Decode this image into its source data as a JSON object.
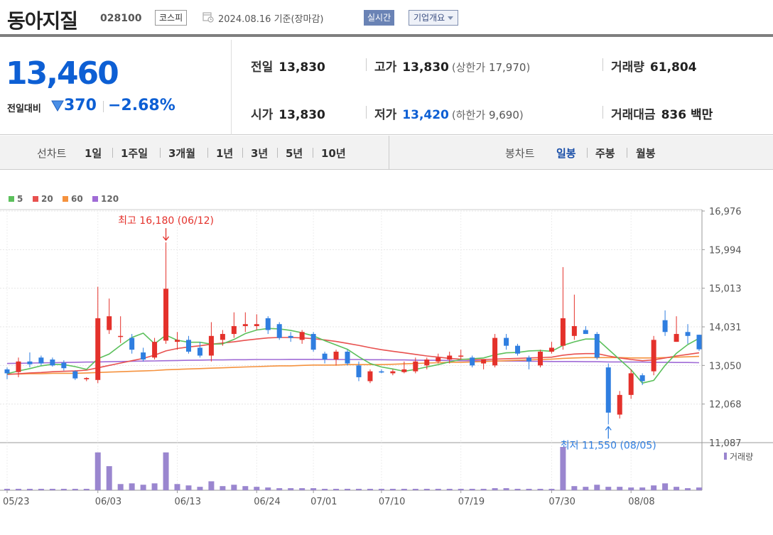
{
  "header": {
    "name": "동아지질",
    "code": "028100",
    "market": "코스피",
    "date": "2024.08.16 기준(장마감)",
    "realtime": "실시간",
    "company": "기업개요"
  },
  "quote": {
    "price": "13,460",
    "change_label": "전일대비",
    "change": "370",
    "change_rate": "−2.68%",
    "prev_close_label": "전일",
    "prev_close": "13,830",
    "high_label": "고가",
    "high": "13,830",
    "upper_limit_label": "상한가",
    "upper_limit": "17,970",
    "volume_label": "거래량",
    "volume": "61,804",
    "open_label": "시가",
    "open": "13,830",
    "low_label": "저가",
    "low": "13,420",
    "lower_limit_label": "하한가",
    "lower_limit": "9,690",
    "amount_label": "거래대금",
    "amount": "836 백만"
  },
  "period_bar": {
    "line_label": "선차트",
    "line_items": [
      "1일",
      "1주일",
      "3개월",
      "1년",
      "3년",
      "5년",
      "10년"
    ],
    "candle_label": "봉차트",
    "candle_items": [
      "일봉",
      "주봉",
      "월봉"
    ],
    "selected_candle": "일봉"
  },
  "colors": {
    "up": "#e4312b",
    "down": "#2f7ee0",
    "ma5": "#5cc05c",
    "ma20": "#e8514f",
    "ma60": "#f5923e",
    "ma120": "#a06bd6",
    "volume": "#9a86cf"
  },
  "chart_data": {
    "type": "candlestick",
    "legend": [
      {
        "label": "5",
        "color": "#5cc05c"
      },
      {
        "label": "20",
        "color": "#e8514f"
      },
      {
        "label": "60",
        "color": "#f5923e"
      },
      {
        "label": "120",
        "color": "#a06bd6"
      }
    ],
    "y_ticks": [
      "16,976",
      "15,994",
      "15,013",
      "14,031",
      "13,050",
      "12,068",
      "11,087"
    ],
    "x_ticks": [
      "05/23",
      "06/03",
      "06/13",
      "06/24",
      "07/01",
      "07/10",
      "07/19",
      "07/30",
      "08/08"
    ],
    "annotations": {
      "high": "최고 16,180 (06/12)",
      "low": "최저 11,550 (08/05)"
    },
    "volume_label": "거래량",
    "candles": [
      {
        "o": 12950,
        "h": 13000,
        "l": 12700,
        "c": 12850
      },
      {
        "o": 12880,
        "h": 13250,
        "l": 12750,
        "c": 13150
      },
      {
        "o": 13150,
        "h": 13380,
        "l": 13000,
        "c": 13080
      },
      {
        "o": 13250,
        "h": 13300,
        "l": 13050,
        "c": 13100
      },
      {
        "o": 13200,
        "h": 13250,
        "l": 13020,
        "c": 13050
      },
      {
        "o": 13120,
        "h": 13180,
        "l": 12920,
        "c": 12980
      },
      {
        "o": 12900,
        "h": 12930,
        "l": 12680,
        "c": 12720
      },
      {
        "o": 12700,
        "h": 12750,
        "l": 12650,
        "c": 12730
      },
      {
        "o": 12680,
        "h": 15050,
        "l": 12600,
        "c": 14250
      },
      {
        "o": 13950,
        "h": 14750,
        "l": 13850,
        "c": 14300
      },
      {
        "o": 13800,
        "h": 14300,
        "l": 13620,
        "c": 13800
      },
      {
        "o": 13750,
        "h": 13850,
        "l": 13350,
        "c": 13450
      },
      {
        "o": 13380,
        "h": 13500,
        "l": 13150,
        "c": 13200
      },
      {
        "o": 13250,
        "h": 13750,
        "l": 13200,
        "c": 13650
      },
      {
        "o": 13680,
        "h": 16180,
        "l": 13600,
        "c": 15000
      },
      {
        "o": 13650,
        "h": 13900,
        "l": 13450,
        "c": 13700
      },
      {
        "o": 13700,
        "h": 13800,
        "l": 13350,
        "c": 13400
      },
      {
        "o": 13500,
        "h": 13650,
        "l": 13250,
        "c": 13300
      },
      {
        "o": 13300,
        "h": 14150,
        "l": 13150,
        "c": 13800
      },
      {
        "o": 13700,
        "h": 13950,
        "l": 13550,
        "c": 13850
      },
      {
        "o": 13850,
        "h": 14400,
        "l": 13750,
        "c": 14050
      },
      {
        "o": 14050,
        "h": 14400,
        "l": 13900,
        "c": 14100
      },
      {
        "o": 14050,
        "h": 14350,
        "l": 13950,
        "c": 14100
      },
      {
        "o": 14250,
        "h": 14300,
        "l": 13850,
        "c": 13950
      },
      {
        "o": 14100,
        "h": 14150,
        "l": 13700,
        "c": 13750
      },
      {
        "o": 13800,
        "h": 13900,
        "l": 13650,
        "c": 13750
      },
      {
        "o": 13700,
        "h": 13950,
        "l": 13600,
        "c": 13900
      },
      {
        "o": 13850,
        "h": 13900,
        "l": 13400,
        "c": 13450
      },
      {
        "o": 13350,
        "h": 13400,
        "l": 13100,
        "c": 13200
      },
      {
        "o": 13200,
        "h": 13450,
        "l": 13050,
        "c": 13400
      },
      {
        "o": 13400,
        "h": 13450,
        "l": 13050,
        "c": 13100
      },
      {
        "o": 13050,
        "h": 13150,
        "l": 12650,
        "c": 12750
      },
      {
        "o": 12650,
        "h": 12950,
        "l": 12600,
        "c": 12900
      },
      {
        "o": 12900,
        "h": 12950,
        "l": 12850,
        "c": 12870
      },
      {
        "o": 12850,
        "h": 12950,
        "l": 12800,
        "c": 12900
      },
      {
        "o": 12880,
        "h": 13150,
        "l": 12850,
        "c": 12950
      },
      {
        "o": 12900,
        "h": 13250,
        "l": 12850,
        "c": 13150
      },
      {
        "o": 13050,
        "h": 13250,
        "l": 12950,
        "c": 13200
      },
      {
        "o": 13150,
        "h": 13350,
        "l": 13100,
        "c": 13250
      },
      {
        "o": 13200,
        "h": 13400,
        "l": 13100,
        "c": 13300
      },
      {
        "o": 13300,
        "h": 13450,
        "l": 13200,
        "c": 13300
      },
      {
        "o": 13250,
        "h": 13300,
        "l": 13000,
        "c": 13050
      },
      {
        "o": 13100,
        "h": 13200,
        "l": 12950,
        "c": 13200
      },
      {
        "o": 13050,
        "h": 13850,
        "l": 13000,
        "c": 13750
      },
      {
        "o": 13750,
        "h": 13850,
        "l": 13450,
        "c": 13550
      },
      {
        "o": 13550,
        "h": 13600,
        "l": 13300,
        "c": 13350
      },
      {
        "o": 13250,
        "h": 13300,
        "l": 12950,
        "c": 13150
      },
      {
        "o": 13050,
        "h": 13450,
        "l": 13000,
        "c": 13400
      },
      {
        "o": 13400,
        "h": 13650,
        "l": 13350,
        "c": 13500
      },
      {
        "o": 13550,
        "h": 15550,
        "l": 13450,
        "c": 14250
      },
      {
        "o": 13800,
        "h": 14850,
        "l": 13700,
        "c": 14050
      },
      {
        "o": 13950,
        "h": 14050,
        "l": 13850,
        "c": 13850
      },
      {
        "o": 13850,
        "h": 13900,
        "l": 13200,
        "c": 13250
      },
      {
        "o": 13000,
        "h": 13100,
        "l": 11550,
        "c": 11850
      },
      {
        "o": 11800,
        "h": 12400,
        "l": 11700,
        "c": 12300
      },
      {
        "o": 12300,
        "h": 12950,
        "l": 12200,
        "c": 12850
      },
      {
        "o": 12800,
        "h": 12850,
        "l": 12550,
        "c": 12650
      },
      {
        "o": 12900,
        "h": 13800,
        "l": 12800,
        "c": 13700
      },
      {
        "o": 14200,
        "h": 14450,
        "l": 13800,
        "c": 13900
      },
      {
        "o": 13650,
        "h": 14300,
        "l": 13650,
        "c": 13850
      },
      {
        "o": 13900,
        "h": 14100,
        "l": 13600,
        "c": 13800
      },
      {
        "o": 13830,
        "h": 13830,
        "l": 13420,
        "c": 13460
      }
    ],
    "volume": [
      2,
      2,
      2,
      0,
      0,
      0,
      0,
      0,
      55,
      35,
      9,
      10,
      8,
      10,
      55,
      9,
      7,
      5,
      13,
      6,
      8,
      6,
      5,
      4,
      3,
      3,
      3,
      3,
      2,
      0,
      0,
      2,
      0,
      0,
      0,
      0,
      0,
      2,
      2,
      2,
      2,
      2,
      2,
      3,
      3,
      2,
      2,
      2,
      2,
      63,
      6,
      5,
      8,
      5,
      5,
      4,
      4,
      7,
      10,
      5,
      3,
      4
    ],
    "ma5": [
      12840,
      12910,
      12970,
      13040,
      13080,
      13070,
      13020,
      12950,
      13220,
      13340,
      13560,
      13760,
      13870,
      13600,
      13820,
      13690,
      13640,
      13640,
      13590,
      13600,
      13710,
      13860,
      13950,
      13990,
      13980,
      13940,
      13880,
      13800,
      13680,
      13570,
      13460,
      13270,
      13100,
      13010,
      12960,
      12900,
      12950,
      13010,
      13070,
      13140,
      13200,
      13220,
      13240,
      13320,
      13370,
      13380,
      13420,
      13430,
      13410,
      13560,
      13650,
      13720,
      13720,
      13460,
      13200,
      12940,
      12600,
      12670,
      13050,
      13360,
      13580,
      13740
    ],
    "ma20": [
      12820,
      12840,
      12860,
      12870,
      12890,
      12900,
      12910,
      12930,
      12990,
      13050,
      13110,
      13170,
      13230,
      13310,
      13420,
      13480,
      13520,
      13550,
      13590,
      13620,
      13650,
      13690,
      13720,
      13750,
      13760,
      13760,
      13750,
      13730,
      13700,
      13660,
      13610,
      13560,
      13500,
      13450,
      13410,
      13370,
      13330,
      13290,
      13260,
      13230,
      13210,
      13200,
      13200,
      13210,
      13220,
      13230,
      13240,
      13250,
      13260,
      13310,
      13340,
      13350,
      13350,
      13290,
      13240,
      13200,
      13170,
      13190,
      13240,
      13290,
      13330,
      13370
    ],
    "ma60": [
      12830,
      12830,
      12840,
      12840,
      12850,
      12850,
      12850,
      12860,
      12870,
      12880,
      12890,
      12900,
      12910,
      12920,
      12940,
      12950,
      12960,
      12970,
      12980,
      12990,
      13000,
      13010,
      13020,
      13030,
      13040,
      13040,
      13050,
      13060,
      13060,
      13060,
      13070,
      13070,
      13070,
      13070,
      13080,
      13090,
      13100,
      13110,
      13120,
      13130,
      13130,
      13140,
      13150,
      13160,
      13170,
      13180,
      13190,
      13200,
      13210,
      13230,
      13240,
      13250,
      13250,
      13250,
      13250,
      13240,
      13240,
      13240,
      13250,
      13260,
      13270,
      13280
    ],
    "ma120": [
      13100,
      13105,
      13110,
      13115,
      13120,
      13125,
      13130,
      13135,
      13140,
      13145,
      13150,
      13155,
      13160,
      13165,
      13170,
      13175,
      13180,
      13185,
      13190,
      13190,
      13195,
      13195,
      13200,
      13200,
      13200,
      13205,
      13205,
      13205,
      13205,
      13200,
      13200,
      13200,
      13195,
      13195,
      13190,
      13190,
      13185,
      13180,
      13180,
      13175,
      13170,
      13170,
      13165,
      13165,
      13160,
      13160,
      13155,
      13155,
      13150,
      13150,
      13150,
      13145,
      13145,
      13140,
      13140,
      13135,
      13135,
      13130,
      13130,
      13125,
      13125,
      13120
    ]
  }
}
